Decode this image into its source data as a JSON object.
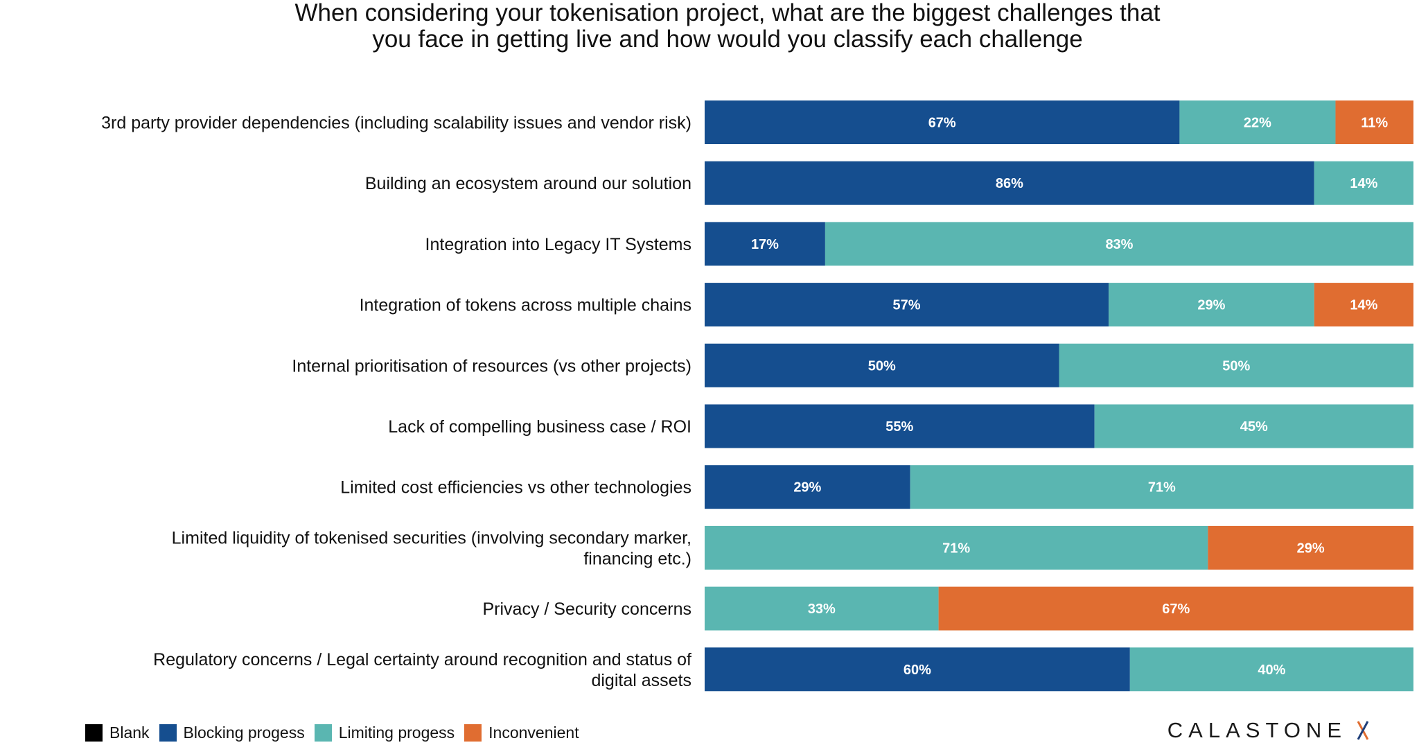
{
  "title_lines": [
    "When considering your tokenisation project, what are the biggest challenges that",
    "you face in getting live and how would you classify each challenge"
  ],
  "colors": {
    "blank": "#000000",
    "blocking": "#154e8f",
    "limiting": "#5ab6b1",
    "inconvenient": "#e06d31"
  },
  "legend": [
    {
      "label": "Blank",
      "color": "#000000"
    },
    {
      "label": "Blocking progess",
      "color": "#154e8f"
    },
    {
      "label": "Limiting progess",
      "color": "#5ab6b1"
    },
    {
      "label": "Inconvenient",
      "color": "#e06d31"
    }
  ],
  "brand": {
    "name": "CALASTONE"
  },
  "chart_data": {
    "type": "bar",
    "orientation": "horizontal",
    "stacked": true,
    "normalized": true,
    "categories": [
      [
        "3rd party provider dependencies (including scalability issues and vendor risk)"
      ],
      [
        "Building an ecosystem around our solution"
      ],
      [
        "Integration into Legacy IT Systems"
      ],
      [
        "Integration of tokens across multiple chains"
      ],
      [
        "Internal prioritisation of resources (vs other projects)"
      ],
      [
        "Lack of compelling business case / ROI"
      ],
      [
        "Limited cost efficiencies vs other technologies"
      ],
      [
        "Limited liquidity of tokenised securities (involving secondary marker,",
        "financing etc.)"
      ],
      [
        "Privacy / Security concerns"
      ],
      [
        "Regulatory concerns / Legal certainty around recognition and status of",
        "digital assets"
      ]
    ],
    "series": [
      {
        "name": "Blank",
        "color": "#000000",
        "values": [
          0,
          0,
          0,
          0,
          0,
          0,
          0,
          0,
          0,
          0
        ]
      },
      {
        "name": "Blocking progess",
        "color": "#154e8f",
        "values": [
          67,
          86,
          17,
          57,
          50,
          55,
          29,
          0,
          0,
          60
        ]
      },
      {
        "name": "Limiting progess",
        "color": "#5ab6b1",
        "values": [
          22,
          14,
          83,
          29,
          50,
          45,
          71,
          71,
          33,
          40
        ]
      },
      {
        "name": "Inconvenient",
        "color": "#e06d31",
        "values": [
          11,
          0,
          0,
          14,
          0,
          0,
          0,
          29,
          67,
          0
        ]
      }
    ],
    "value_suffix": "%",
    "xlim": [
      0,
      100
    ],
    "grid": false,
    "legend_position": "bottom-left"
  }
}
